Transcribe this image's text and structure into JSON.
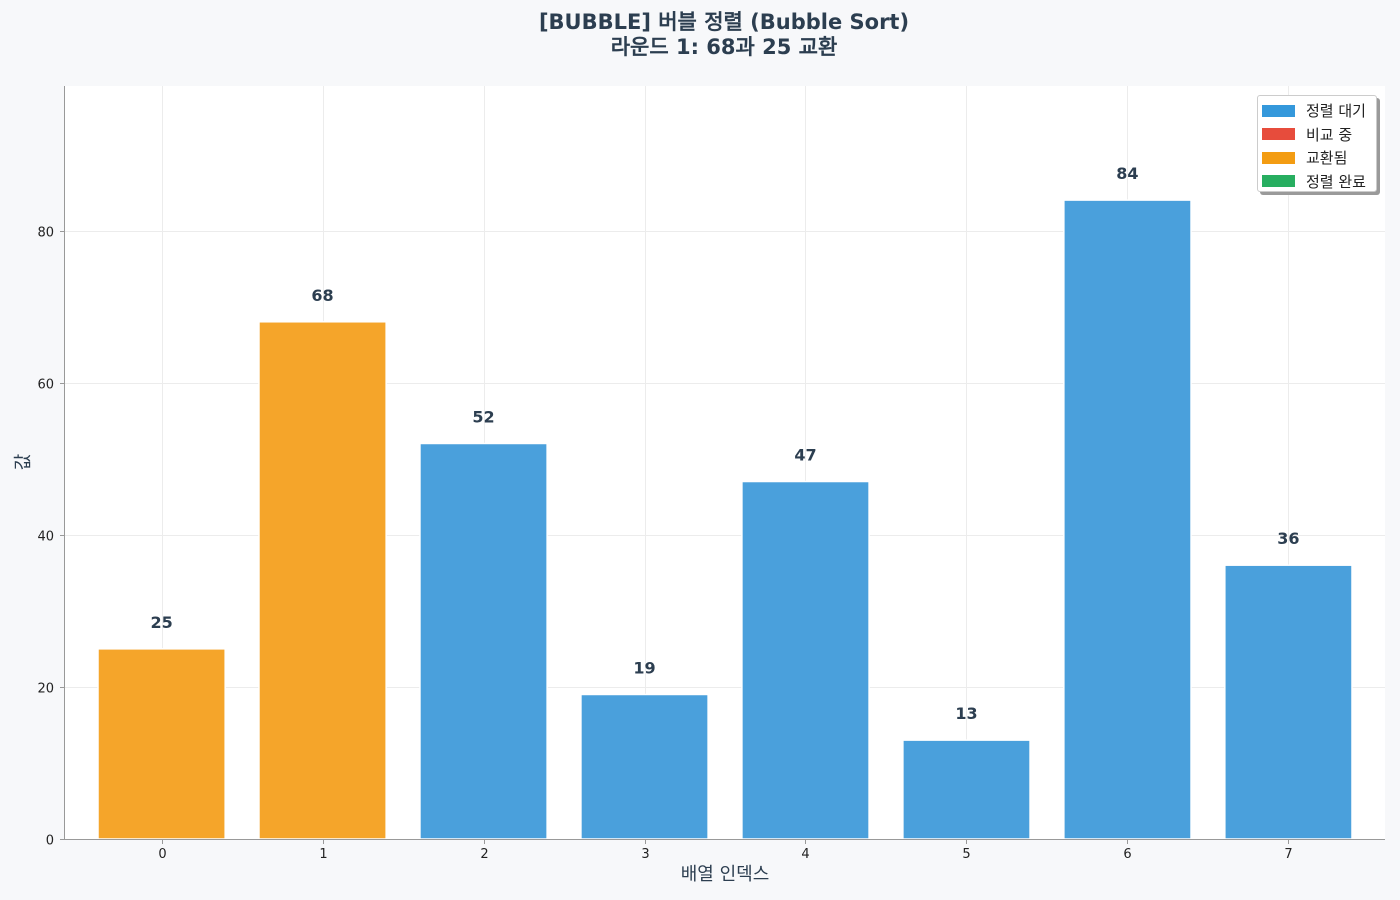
{
  "chart_data": {
    "type": "bar",
    "title": "[BUBBLE] 버블 정렬 (Bubble Sort)",
    "subtitle": "라운드 1: 68과 25 교환",
    "xlabel": "배열 인덱스",
    "ylabel": "값",
    "categories": [
      "0",
      "1",
      "2",
      "3",
      "4",
      "5",
      "6",
      "7"
    ],
    "values": [
      25,
      68,
      52,
      19,
      47,
      13,
      84,
      36
    ],
    "bar_states": [
      "swapped",
      "swapped",
      "waiting",
      "waiting",
      "waiting",
      "waiting",
      "waiting",
      "waiting"
    ],
    "ylim": [
      0,
      99
    ],
    "yticks": [
      0,
      20,
      40,
      60,
      80
    ],
    "grid": true,
    "legend_position": "top-right",
    "legend": [
      {
        "key": "waiting",
        "label": "정렬 대기",
        "color": "#3498db"
      },
      {
        "key": "comparing",
        "label": "비교 중",
        "color": "#e74c3c"
      },
      {
        "key": "swapped",
        "label": "교환됨",
        "color": "#f39c12"
      },
      {
        "key": "sorted",
        "label": "정렬 완료",
        "color": "#27ae60"
      }
    ],
    "bar_colors": {
      "waiting": "#4aa0dc",
      "comparing": "#e74c3c",
      "swapped": "#f5a52a",
      "sorted": "#27ae60"
    }
  }
}
